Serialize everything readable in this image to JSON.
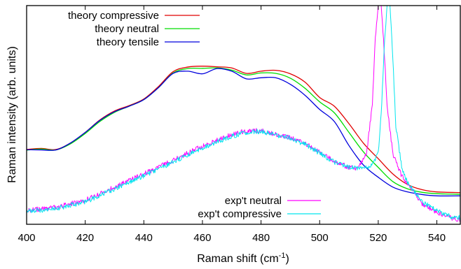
{
  "chart_data": {
    "type": "line",
    "title": "",
    "xlabel_main": "Raman shift (cm",
    "xlabel_sup": "-1",
    "xlabel_close": ")",
    "ylabel": "Raman intensity (arb. units)",
    "xlim": [
      400,
      548
    ],
    "ylim": [
      0,
      1
    ],
    "x_ticks": [
      "400",
      "420",
      "440",
      "460",
      "480",
      "500",
      "520",
      "540"
    ],
    "y_ticks_labeled": false,
    "grid": false,
    "legend_top": "top-left",
    "legend_bottom": "bottom-right",
    "series": [
      {
        "name": "theory compressive",
        "color": "#e00000",
        "points": [
          [
            400,
            0.342
          ],
          [
            405,
            0.347
          ],
          [
            410,
            0.342
          ],
          [
            415,
            0.372
          ],
          [
            420,
            0.42
          ],
          [
            425,
            0.477
          ],
          [
            430,
            0.518
          ],
          [
            435,
            0.543
          ],
          [
            440,
            0.573
          ],
          [
            445,
            0.63
          ],
          [
            450,
            0.698
          ],
          [
            455,
            0.719
          ],
          [
            460,
            0.723
          ],
          [
            465,
            0.72
          ],
          [
            470,
            0.715
          ],
          [
            475,
            0.69
          ],
          [
            480,
            0.7
          ],
          [
            485,
            0.704
          ],
          [
            490,
            0.688
          ],
          [
            495,
            0.65
          ],
          [
            500,
            0.58
          ],
          [
            505,
            0.54
          ],
          [
            510,
            0.46
          ],
          [
            515,
            0.37
          ],
          [
            520,
            0.3
          ],
          [
            525,
            0.23
          ],
          [
            530,
            0.182
          ],
          [
            535,
            0.158
          ],
          [
            540,
            0.148
          ],
          [
            548,
            0.145
          ]
        ]
      },
      {
        "name": "theory neutral",
        "color": "#00dd00",
        "points": [
          [
            400,
            0.339
          ],
          [
            405,
            0.344
          ],
          [
            410,
            0.34
          ],
          [
            415,
            0.368
          ],
          [
            420,
            0.415
          ],
          [
            425,
            0.47
          ],
          [
            430,
            0.512
          ],
          [
            435,
            0.54
          ],
          [
            440,
            0.57
          ],
          [
            445,
            0.625
          ],
          [
            450,
            0.692
          ],
          [
            455,
            0.712
          ],
          [
            460,
            0.713
          ],
          [
            465,
            0.715
          ],
          [
            470,
            0.705
          ],
          [
            475,
            0.683
          ],
          [
            480,
            0.692
          ],
          [
            485,
            0.69
          ],
          [
            490,
            0.668
          ],
          [
            495,
            0.622
          ],
          [
            500,
            0.56
          ],
          [
            505,
            0.51
          ],
          [
            510,
            0.42
          ],
          [
            515,
            0.33
          ],
          [
            520,
            0.26
          ],
          [
            525,
            0.195
          ],
          [
            530,
            0.162
          ],
          [
            535,
            0.146
          ],
          [
            540,
            0.14
          ],
          [
            548,
            0.137
          ]
        ]
      },
      {
        "name": "theory tensile",
        "color": "#0000dd",
        "points": [
          [
            400,
            0.341
          ],
          [
            405,
            0.34
          ],
          [
            410,
            0.34
          ],
          [
            415,
            0.372
          ],
          [
            420,
            0.42
          ],
          [
            425,
            0.475
          ],
          [
            430,
            0.515
          ],
          [
            435,
            0.54
          ],
          [
            440,
            0.57
          ],
          [
            445,
            0.625
          ],
          [
            450,
            0.69
          ],
          [
            455,
            0.7
          ],
          [
            460,
            0.688
          ],
          [
            465,
            0.712
          ],
          [
            470,
            0.7
          ],
          [
            475,
            0.665
          ],
          [
            480,
            0.67
          ],
          [
            485,
            0.67
          ],
          [
            490,
            0.64
          ],
          [
            495,
            0.59
          ],
          [
            500,
            0.525
          ],
          [
            505,
            0.47
          ],
          [
            510,
            0.36
          ],
          [
            515,
            0.27
          ],
          [
            520,
            0.215
          ],
          [
            525,
            0.17
          ],
          [
            530,
            0.148
          ],
          [
            535,
            0.136
          ],
          [
            540,
            0.13
          ],
          [
            548,
            0.13
          ]
        ]
      },
      {
        "name": "exp't neutral",
        "color": "#ff00ff",
        "points": [
          [
            400,
            0.063
          ],
          [
            410,
            0.078
          ],
          [
            420,
            0.11
          ],
          [
            430,
            0.17
          ],
          [
            440,
            0.23
          ],
          [
            450,
            0.293
          ],
          [
            460,
            0.358
          ],
          [
            470,
            0.41
          ],
          [
            475,
            0.428
          ],
          [
            480,
            0.428
          ],
          [
            485,
            0.41
          ],
          [
            490,
            0.395
          ],
          [
            495,
            0.37
          ],
          [
            500,
            0.33
          ],
          [
            505,
            0.29
          ],
          [
            510,
            0.26
          ],
          [
            513,
            0.255
          ],
          [
            516,
            0.32
          ],
          [
            518,
            0.55
          ],
          [
            519,
            0.85
          ],
          [
            520,
            1.0
          ],
          [
            521,
            1.0
          ],
          [
            522,
            0.8
          ],
          [
            523,
            0.55
          ],
          [
            525,
            0.32
          ],
          [
            528,
            0.22
          ],
          [
            530,
            0.18
          ],
          [
            535,
            0.095
          ],
          [
            540,
            0.055
          ],
          [
            545,
            0.028
          ],
          [
            548,
            0.022
          ]
        ]
      },
      {
        "name": "exp't compressive",
        "color": "#00e5ee",
        "points": [
          [
            400,
            0.058
          ],
          [
            410,
            0.072
          ],
          [
            420,
            0.102
          ],
          [
            430,
            0.162
          ],
          [
            440,
            0.222
          ],
          [
            450,
            0.285
          ],
          [
            460,
            0.35
          ],
          [
            470,
            0.403
          ],
          [
            475,
            0.42
          ],
          [
            480,
            0.425
          ],
          [
            485,
            0.408
          ],
          [
            490,
            0.395
          ],
          [
            495,
            0.365
          ],
          [
            500,
            0.325
          ],
          [
            505,
            0.285
          ],
          [
            510,
            0.26
          ],
          [
            515,
            0.255
          ],
          [
            518,
            0.27
          ],
          [
            520,
            0.33
          ],
          [
            521,
            0.5
          ],
          [
            522,
            0.8
          ],
          [
            523,
            1.0
          ],
          [
            524,
            1.0
          ],
          [
            525,
            0.75
          ],
          [
            526,
            0.45
          ],
          [
            528,
            0.26
          ],
          [
            530,
            0.19
          ],
          [
            535,
            0.102
          ],
          [
            540,
            0.062
          ],
          [
            545,
            0.035
          ],
          [
            548,
            0.03
          ]
        ]
      }
    ]
  }
}
